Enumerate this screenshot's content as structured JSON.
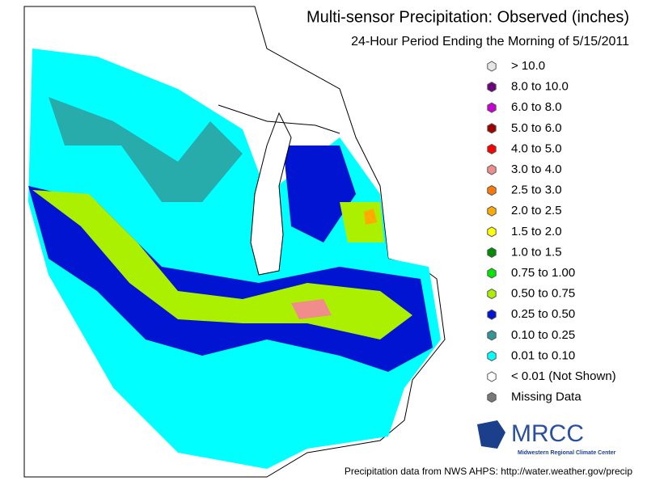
{
  "title": "Multi-sensor Precipitation: Observed (inches)",
  "subtitle": "24-Hour Period Ending the Morning of 5/15/2011",
  "legend": [
    {
      "label": "> 10.0",
      "color": "#e6e6e6"
    },
    {
      "label": "8.0 to 10.0",
      "color": "#6e0080"
    },
    {
      "label": "6.0 to 8.0",
      "color": "#c800d2"
    },
    {
      "label": "5.0 to 6.0",
      "color": "#a00000"
    },
    {
      "label": "4.0 to 5.0",
      "color": "#ff0000"
    },
    {
      "label": "3.0 to 4.0",
      "color": "#f08c8c"
    },
    {
      "label": "2.5 to 3.0",
      "color": "#ff7800"
    },
    {
      "label": "2.0 to 2.5",
      "color": "#ffaa00"
    },
    {
      "label": "1.5 to 2.0",
      "color": "#ffff00"
    },
    {
      "label": "1.0 to 1.5",
      "color": "#008c00"
    },
    {
      "label": "0.75 to 1.00",
      "color": "#00e600"
    },
    {
      "label": "0.50 to 0.75",
      "color": "#aaf000"
    },
    {
      "label": "0.25 to 0.50",
      "color": "#0014d2"
    },
    {
      "label": "0.10 to 0.25",
      "color": "#329696"
    },
    {
      "label": "0.01 to 0.10",
      "color": "#00ffff"
    },
    {
      "label": "< 0.01 (Not Shown)",
      "color": "#ffffff"
    },
    {
      "label": "Missing Data",
      "color": "#787878"
    }
  ],
  "logo": {
    "name": "MRCC",
    "subtitle": "Midwestern Regional Climate Center"
  },
  "credit": "Precipitation data from NWS AHPS:  http://water.weather.gov/precip"
}
